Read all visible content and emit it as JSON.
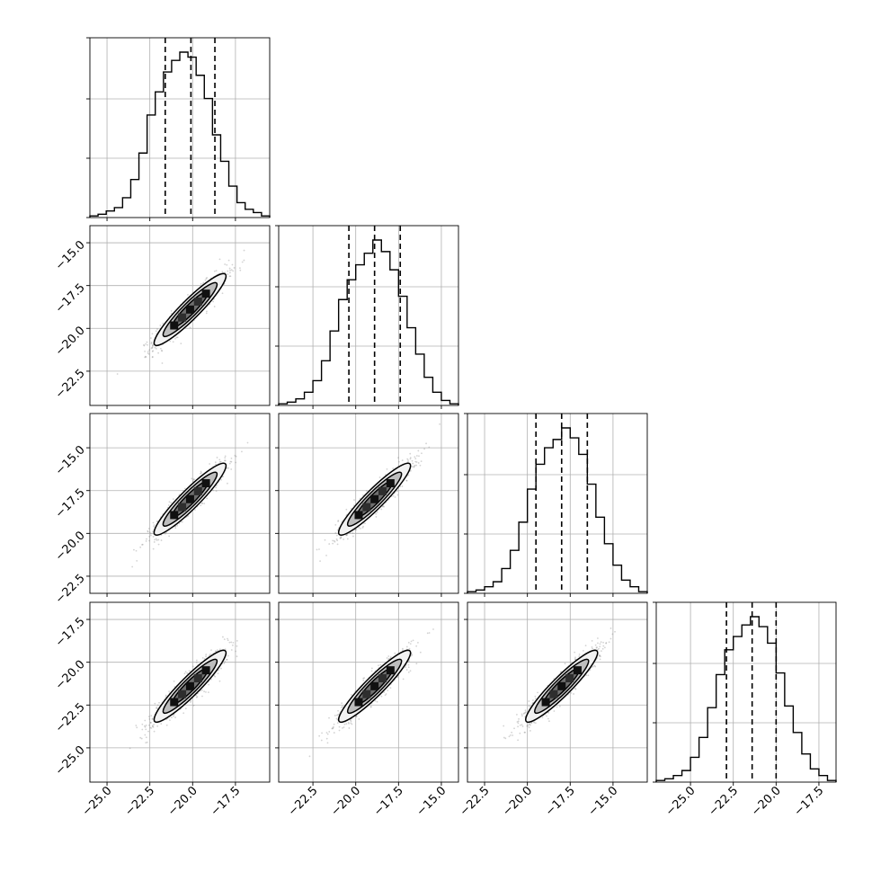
{
  "chart_data": {
    "type": "corner",
    "grid": true,
    "colors": {
      "line": "#000000",
      "grid": "#b0b0b0",
      "scatter": "#808080"
    },
    "params": [
      {
        "range": [
          -26.0,
          -15.5
        ],
        "ticks": [
          -25.0,
          -22.5,
          -20.0,
          -17.5
        ],
        "tick_labels": [
          "−25.0",
          "−22.5",
          "−20.0",
          "−17.5"
        ],
        "quantiles": [
          -21.6,
          -20.1,
          -18.7
        ],
        "mean": -20.15,
        "sd": 1.05,
        "hist": [
          0.01,
          0.02,
          0.04,
          0.06,
          0.12,
          0.23,
          0.39,
          0.62,
          0.76,
          0.88,
          0.95,
          1.0,
          0.97,
          0.86,
          0.72,
          0.5,
          0.34,
          0.19,
          0.09,
          0.05,
          0.03,
          0.01
        ]
      },
      {
        "range": [
          -24.5,
          -14.0
        ],
        "ticks": [
          -22.5,
          -20.0,
          -17.5,
          -15.0
        ],
        "tick_labels": [
          "−22.5",
          "−20.0",
          "−17.5",
          "−15.0"
        ],
        "quantiles": [
          -20.4,
          -18.9,
          -17.4
        ],
        "mean": -18.9,
        "sd": 1.05,
        "hist": [
          0.01,
          0.02,
          0.04,
          0.08,
          0.15,
          0.27,
          0.45,
          0.64,
          0.76,
          0.85,
          0.92,
          1.0,
          0.93,
          0.82,
          0.66,
          0.47,
          0.31,
          0.17,
          0.08,
          0.03,
          0.01
        ]
      },
      {
        "range": [
          -23.5,
          -13.0
        ],
        "ticks": [
          -22.5,
          -20.0,
          -17.5,
          -15.0
        ],
        "tick_labels": [
          "−22.5",
          "−20.0",
          "−17.5",
          "−15.0"
        ],
        "quantiles": [
          -19.5,
          -18.0,
          -16.5
        ],
        "mean": -18.0,
        "sd": 1.05,
        "hist": [
          0.01,
          0.02,
          0.04,
          0.07,
          0.15,
          0.26,
          0.43,
          0.63,
          0.78,
          0.88,
          0.93,
          1.0,
          0.94,
          0.84,
          0.66,
          0.46,
          0.3,
          0.17,
          0.08,
          0.04,
          0.01
        ]
      },
      {
        "range": [
          -27.0,
          -16.5
        ],
        "ticks": [
          -25.0,
          -22.5,
          -20.0,
          -17.5
        ],
        "tick_labels": [
          "−25.0",
          "−22.5",
          "−20.0",
          "−17.5"
        ],
        "quantiles": [
          -22.9,
          -21.4,
          -20.0
        ],
        "mean": -21.4,
        "sd": 1.05,
        "hist": [
          0.01,
          0.02,
          0.04,
          0.07,
          0.15,
          0.27,
          0.45,
          0.65,
          0.8,
          0.88,
          0.95,
          1.0,
          0.94,
          0.84,
          0.66,
          0.46,
          0.3,
          0.17,
          0.08,
          0.04,
          0.01
        ]
      }
    ],
    "correlation": 0.93
  }
}
